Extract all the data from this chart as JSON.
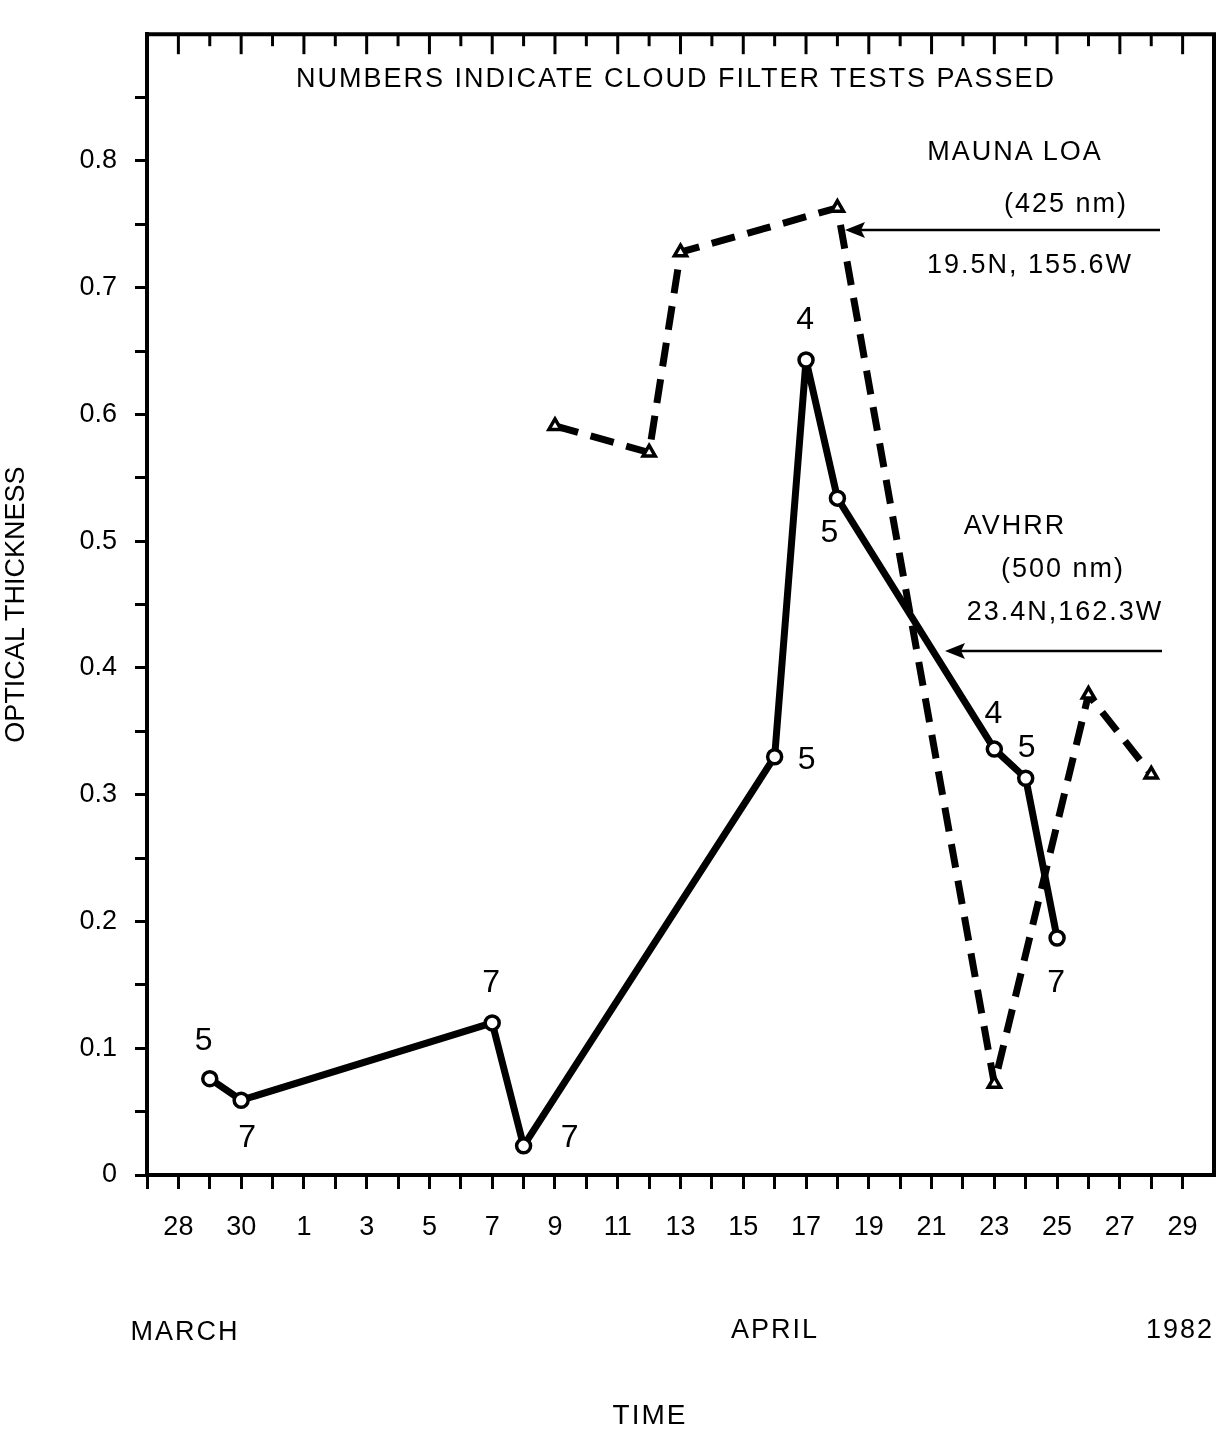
{
  "chart_data": {
    "type": "line",
    "ylabel": "OPTICAL THICKNESS",
    "xlim": [
      "1982-03-27",
      "1982-04-30"
    ],
    "xticks": [
      {
        "value": "1982-03-27",
        "label": null
      },
      {
        "value": "1982-03-28",
        "label": "28"
      },
      {
        "value": "1982-03-29",
        "label": null
      },
      {
        "value": "1982-03-30",
        "label": "30"
      },
      {
        "value": "1982-03-31",
        "label": null
      },
      {
        "value": "1982-04-01",
        "label": "1"
      },
      {
        "value": "1982-04-02",
        "label": null
      },
      {
        "value": "1982-04-03",
        "label": "3"
      },
      {
        "value": "1982-04-04",
        "label": null
      },
      {
        "value": "1982-04-05",
        "label": "5"
      },
      {
        "value": "1982-04-06",
        "label": null
      },
      {
        "value": "1982-04-07",
        "label": "7"
      },
      {
        "value": "1982-04-08",
        "label": null
      },
      {
        "value": "1982-04-09",
        "label": "9"
      },
      {
        "value": "1982-04-10",
        "label": null
      },
      {
        "value": "1982-04-11",
        "label": "11"
      },
      {
        "value": "1982-04-12",
        "label": null
      },
      {
        "value": "1982-04-13",
        "label": "13"
      },
      {
        "value": "1982-04-14",
        "label": null
      },
      {
        "value": "1982-04-15",
        "label": "15"
      },
      {
        "value": "1982-04-16",
        "label": null
      },
      {
        "value": "1982-04-17",
        "label": "17"
      },
      {
        "value": "1982-04-18",
        "label": null
      },
      {
        "value": "1982-04-19",
        "label": "19"
      },
      {
        "value": "1982-04-20",
        "label": null
      },
      {
        "value": "1982-04-21",
        "label": "21"
      },
      {
        "value": "1982-04-22",
        "label": null
      },
      {
        "value": "1982-04-23",
        "label": "23"
      },
      {
        "value": "1982-04-24",
        "label": null
      },
      {
        "value": "1982-04-25",
        "label": "25"
      },
      {
        "value": "1982-04-26",
        "label": null
      },
      {
        "value": "1982-04-27",
        "label": "27"
      },
      {
        "value": "1982-04-28",
        "label": null
      },
      {
        "value": "1982-04-29",
        "label": "29"
      }
    ],
    "ylim": [
      0,
      0.9
    ],
    "yticks": [
      0,
      {
        "value": 0.05,
        "label": null
      },
      0.1,
      {
        "value": 0.15,
        "label": null
      },
      0.2,
      {
        "value": 0.25,
        "label": null
      },
      0.3,
      {
        "value": 0.35,
        "label": null
      },
      0.4,
      {
        "value": 0.45,
        "label": null
      },
      0.5,
      {
        "value": 0.55,
        "label": null
      },
      0.6,
      {
        "value": 0.65,
        "label": null
      },
      0.7,
      {
        "value": 0.75,
        "label": null
      },
      0.8,
      {
        "value": 0.85,
        "label": null
      }
    ],
    "grid": false,
    "legend": false,
    "series": [
      {
        "color": "#000000",
        "marker": "triangle",
        "line_style": "dashed",
        "x": [
          "1982-04-09",
          "1982-04-12",
          "1982-04-13",
          "1982-04-18",
          "1982-04-23",
          "1982-04-26",
          "1982-04-28"
        ],
        "values": [
          0.591,
          0.57,
          0.728,
          0.763,
          0.072,
          0.379,
          0.316
        ]
      },
      {
        "color": "#000000",
        "marker": "circle",
        "line_style": "solid",
        "x": [
          "1982-03-29",
          "1982-03-30",
          "1982-04-07",
          "1982-04-08",
          "1982-04-16",
          "1982-04-17",
          "1982-04-18",
          "1982-04-23",
          "1982-04-24",
          "1982-04-25"
        ],
        "values": [
          0.076,
          0.059,
          0.12,
          0.023,
          0.33,
          0.643,
          0.534,
          0.336,
          0.313,
          0.187
        ]
      }
    ],
    "annotations": [
      "NUMBERS INDICATE CLOUD FILTER TESTS PASSED",
      "(425 nm)",
      "19.5N, 155.6W",
      "(500 nm)",
      "23.4N,162.3W",
      "MARCH",
      "APRIL",
      "1982",
      "TIME",
      "MAUNA LOA",
      "AVHRR",
      {
        "text": "5",
        "x": "1982-03-29",
        "y": 0.076
      },
      {
        "text": "7",
        "x": "1982-03-30",
        "y": 0.059
      },
      {
        "text": "7",
        "x": "1982-04-07",
        "y": 0.12
      },
      {
        "text": "7",
        "x": "1982-04-08",
        "y": 0.023
      },
      {
        "text": "5",
        "x": "1982-04-16",
        "y": 0.33
      },
      {
        "text": "4",
        "x": "1982-04-17",
        "y": 0.643
      },
      {
        "text": "5",
        "x": "1982-04-18",
        "y": 0.534
      },
      {
        "text": "4",
        "x": "1982-04-23",
        "y": 0.336
      },
      {
        "text": "5",
        "x": "1982-04-24",
        "y": 0.313
      },
      {
        "text": "7",
        "x": "1982-04-25",
        "y": 0.187
      }
    ]
  }
}
